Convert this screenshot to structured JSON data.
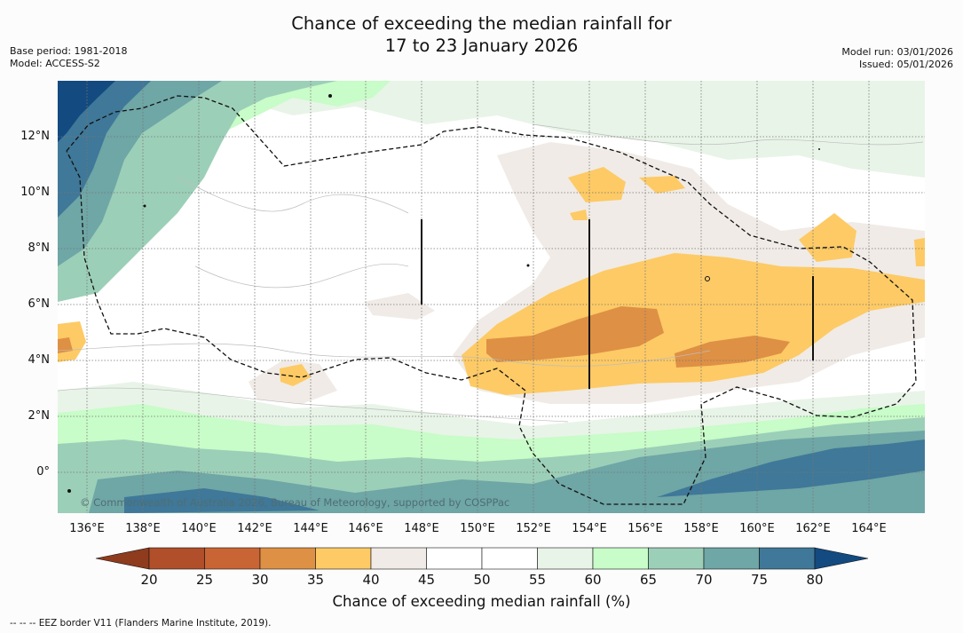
{
  "title": {
    "line1": "Chance of exceeding the median rainfall for",
    "line2": "17 to 23 January 2026"
  },
  "meta": {
    "base_period": "Base period: 1981-2018",
    "model": "Model: ACCESS-S2",
    "model_run": "Model run: 03/01/2026",
    "issued": "Issued: 05/01/2026"
  },
  "map": {
    "lat_labels": [
      "12°N",
      "10°N",
      "8°N",
      "6°N",
      "4°N",
      "2°N",
      "0°"
    ],
    "lon_labels": [
      "136°E",
      "138°E",
      "140°E",
      "142°E",
      "144°E",
      "146°E",
      "148°E",
      "150°E",
      "152°E",
      "154°E",
      "156°E",
      "158°E",
      "160°E",
      "162°E",
      "164°E"
    ],
    "copyright": "© Commonwealth of Australia 2026, Bureau of Meteorology, supported by COSPPac"
  },
  "colorbar": {
    "title": "Chance of exceeding median rainfall (%)",
    "ticks": [
      "20",
      "25",
      "30",
      "35",
      "40",
      "45",
      "50",
      "55",
      "60",
      "65",
      "70",
      "75",
      "80"
    ],
    "colors": {
      "below20": "#8f3b1e",
      "c20_25": "#b04f29",
      "c25_30": "#c96534",
      "c30_35": "#de9044",
      "c35_40": "#fdca65",
      "c40_45": "#f0ebe6",
      "c45_50": "#ffffff",
      "c50_55": "#ffffff",
      "c55_60": "#e8f4e7",
      "c60_65": "#c8fcc8",
      "c65_70": "#9ccfb8",
      "c70_75": "#6fa6a6",
      "c75_80": "#3f7898",
      "above80": "#134a80"
    }
  },
  "footnote": "--  --  -- EEZ border V11 (Flanders Marine Institute, 2019)."
}
